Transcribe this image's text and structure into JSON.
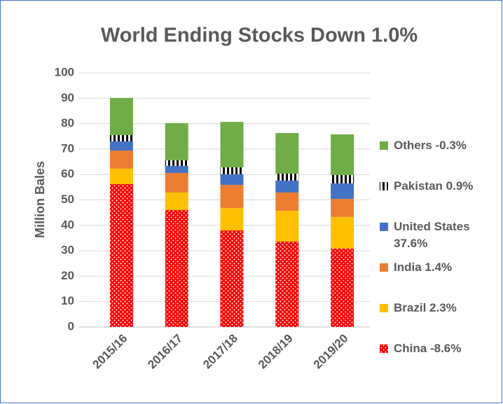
{
  "chart_data": {
    "type": "stacked_bar",
    "title": "World Ending Stocks Down 1.0%",
    "y_label": "Million Bales",
    "categories": [
      "2015/16",
      "2016/17",
      "2017/18",
      "2018/19",
      "2019/20"
    ],
    "series": [
      {
        "name": "China -8.6%",
        "color": "#ff0000",
        "pattern": "dots",
        "values": [
          56.2,
          46.0,
          38.0,
          33.6,
          30.9
        ]
      },
      {
        "name": "Brazil 2.3%",
        "color": "#ffc000",
        "values": [
          6.1,
          6.9,
          8.8,
          12.1,
          12.4
        ]
      },
      {
        "name": "India 1.4%",
        "color": "#ed7d31",
        "values": [
          7.1,
          7.7,
          9.1,
          7.2,
          7.1
        ]
      },
      {
        "name": "United States 37.6%",
        "color": "#4472c4",
        "values": [
          3.6,
          2.8,
          4.2,
          4.7,
          6.1
        ]
      },
      {
        "name": "Pakistan 0.9%",
        "color": "#000000",
        "pattern": "stripes",
        "values": [
          2.5,
          2.2,
          2.7,
          2.7,
          3.3
        ]
      },
      {
        "name": "Others -0.3%",
        "color": "#70ad47",
        "values": [
          14.6,
          14.6,
          17.9,
          16.0,
          16.0
        ]
      }
    ],
    "ylim": [
      0,
      100
    ],
    "yticks": [
      0,
      10,
      20,
      30,
      40,
      50,
      60,
      70,
      80,
      90,
      100
    ],
    "grid": true,
    "legend": "right"
  }
}
